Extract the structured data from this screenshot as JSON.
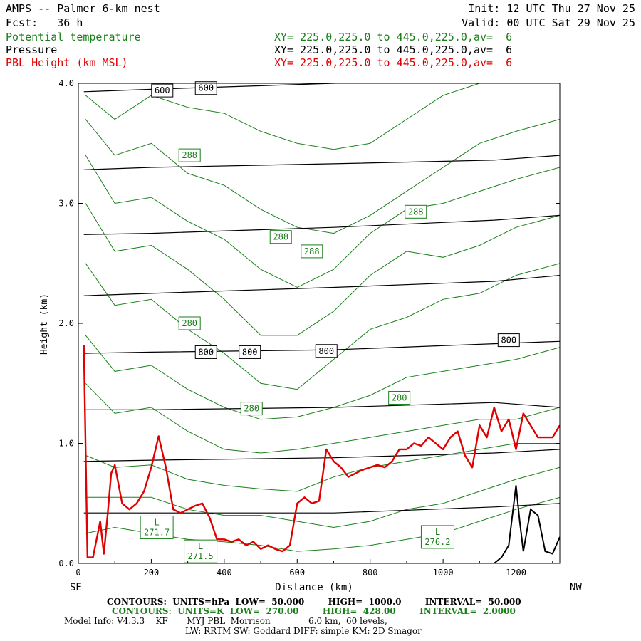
{
  "header": {
    "title": "AMPS -- Palmer 6-km nest",
    "fcst": "Fcst:   36 h",
    "init": "Init: 12 UTC Thu 27 Nov 25",
    "valid": "Valid: 00 UTC Sat 29 Nov 25",
    "fields": [
      {
        "name": "Potential temperature",
        "xy": "XY= 225.0,225.0 to 445.0,225.0,av=  6",
        "color": "#1a7f1a"
      },
      {
        "name": "Pressure",
        "xy": "XY= 225.0,225.0 to 445.0,225.0,av=  6",
        "color": "#000000"
      },
      {
        "name": "PBL Height (km MSL)",
        "xy": "XY= 225.0,225.0 to 445.0,225.0,av=  6",
        "color": "#e00000"
      }
    ]
  },
  "chart_data": {
    "type": "line",
    "xlabel": "Distance (km)",
    "ylabel": "Height (km)",
    "xlim": [
      0,
      1320
    ],
    "ylim": [
      0.0,
      4.0
    ],
    "x_ticks": [
      "0",
      "200",
      "400",
      "600",
      "800",
      "1000",
      "1200"
    ],
    "y_ticks": [
      "0.0",
      "1.0",
      "2.0",
      "3.0",
      "4.0"
    ],
    "left_end_label": "SE",
    "right_end_label": "NW",
    "pressure_contours": [
      {
        "x": [
          15,
          200,
          700,
          1140,
          1320
        ],
        "y": [
          3.93,
          3.95,
          4.0,
          4.05,
          4.1
        ]
      },
      {
        "x": [
          15,
          200,
          700,
          1140,
          1320
        ],
        "y": [
          3.28,
          3.3,
          3.33,
          3.36,
          3.4
        ]
      },
      {
        "x": [
          15,
          200,
          700,
          1140,
          1320
        ],
        "y": [
          2.74,
          2.75,
          2.8,
          2.86,
          2.9
        ]
      },
      {
        "x": [
          15,
          200,
          700,
          1140,
          1320
        ],
        "y": [
          2.23,
          2.25,
          2.3,
          2.35,
          2.4
        ]
      },
      {
        "x": [
          15,
          200,
          700,
          1140,
          1320
        ],
        "y": [
          1.75,
          1.76,
          1.78,
          1.83,
          1.85
        ]
      },
      {
        "x": [
          15,
          200,
          700,
          1140,
          1320
        ],
        "y": [
          1.28,
          1.28,
          1.3,
          1.34,
          1.3
        ]
      },
      {
        "x": [
          15,
          200,
          700,
          1140,
          1320
        ],
        "y": [
          0.85,
          0.86,
          0.88,
          0.92,
          0.95
        ]
      },
      {
        "x": [
          15,
          200,
          700,
          1140,
          1320
        ],
        "y": [
          0.42,
          0.42,
          0.42,
          0.47,
          0.5
        ]
      }
    ],
    "pressure_labels": [
      {
        "text": "600",
        "x": 230,
        "y": 3.94
      },
      {
        "text": "600",
        "x": 350,
        "y": 3.96
      },
      {
        "text": "800",
        "x": 350,
        "y": 1.76
      },
      {
        "text": "800",
        "x": 470,
        "y": 1.76
      },
      {
        "text": "800",
        "x": 680,
        "y": 1.77
      },
      {
        "text": "800",
        "x": 1180,
        "y": 1.86
      }
    ],
    "theta_contours": [
      {
        "x": [
          20,
          100,
          200,
          300,
          400,
          500,
          600,
          700,
          800,
          900,
          1000,
          1100,
          1200,
          1320
        ],
        "y": [
          3.9,
          3.7,
          3.9,
          3.8,
          3.75,
          3.6,
          3.5,
          3.45,
          3.5,
          3.7,
          3.9,
          4.0,
          4.0,
          4.0
        ]
      },
      {
        "x": [
          20,
          100,
          200,
          300,
          400,
          500,
          600,
          700,
          800,
          900,
          1000,
          1100,
          1200,
          1320
        ],
        "y": [
          3.7,
          3.4,
          3.5,
          3.25,
          3.15,
          2.95,
          2.8,
          2.75,
          2.9,
          3.1,
          3.3,
          3.5,
          3.6,
          3.7
        ]
      },
      {
        "x": [
          20,
          100,
          200,
          300,
          400,
          500,
          600,
          700,
          800,
          900,
          1000,
          1100,
          1200,
          1320
        ],
        "y": [
          3.4,
          3.0,
          3.05,
          2.85,
          2.7,
          2.45,
          2.3,
          2.45,
          2.75,
          2.95,
          3.0,
          3.1,
          3.2,
          3.3
        ]
      },
      {
        "x": [
          20,
          100,
          200,
          300,
          400,
          500,
          600,
          700,
          800,
          900,
          1000,
          1100,
          1200,
          1320
        ],
        "y": [
          3.0,
          2.6,
          2.65,
          2.45,
          2.2,
          1.9,
          1.9,
          2.1,
          2.4,
          2.6,
          2.55,
          2.65,
          2.8,
          2.9
        ]
      },
      {
        "x": [
          20,
          100,
          200,
          300,
          400,
          500,
          600,
          700,
          800,
          900,
          1000,
          1100,
          1200,
          1320
        ],
        "y": [
          2.5,
          2.15,
          2.2,
          1.95,
          1.75,
          1.5,
          1.45,
          1.7,
          1.95,
          2.05,
          2.2,
          2.25,
          2.4,
          2.5
        ]
      },
      {
        "x": [
          20,
          100,
          200,
          300,
          400,
          500,
          600,
          700,
          800,
          900,
          1000,
          1100,
          1200,
          1320
        ],
        "y": [
          1.9,
          1.6,
          1.65,
          1.45,
          1.3,
          1.2,
          1.22,
          1.3,
          1.4,
          1.55,
          1.6,
          1.65,
          1.7,
          1.8
        ]
      },
      {
        "x": [
          20,
          100,
          200,
          300,
          400,
          500,
          600,
          700,
          800,
          900,
          1000,
          1100,
          1200,
          1320
        ],
        "y": [
          1.5,
          1.25,
          1.3,
          1.1,
          0.95,
          0.92,
          0.95,
          1.0,
          1.05,
          1.1,
          1.15,
          1.2,
          1.2,
          1.3
        ]
      },
      {
        "x": [
          20,
          100,
          200,
          300,
          400,
          500,
          600,
          700,
          800,
          900,
          1000,
          1100,
          1200,
          1320
        ],
        "y": [
          0.9,
          0.8,
          0.82,
          0.7,
          0.65,
          0.62,
          0.6,
          0.72,
          0.8,
          0.85,
          0.9,
          0.95,
          1.0,
          1.0
        ]
      },
      {
        "x": [
          20,
          100,
          200,
          300,
          400,
          500,
          600,
          700,
          800,
          900,
          1000,
          1100,
          1200,
          1320
        ],
        "y": [
          0.55,
          0.55,
          0.55,
          0.45,
          0.4,
          0.4,
          0.35,
          0.3,
          0.35,
          0.45,
          0.5,
          0.6,
          0.7,
          0.8
        ]
      },
      {
        "x": [
          20,
          100,
          200,
          300,
          400,
          500,
          600,
          700,
          800,
          900,
          1000,
          1100,
          1200,
          1320
        ],
        "y": [
          0.25,
          0.3,
          0.25,
          0.2,
          0.18,
          0.15,
          0.1,
          0.12,
          0.15,
          0.2,
          0.25,
          0.35,
          0.45,
          0.55
        ]
      }
    ],
    "theta_labels": [
      {
        "text": "288",
        "x": 305,
        "y": 3.4
      },
      {
        "text": "288",
        "x": 555,
        "y": 2.72
      },
      {
        "text": "288",
        "x": 640,
        "y": 2.6
      },
      {
        "text": "288",
        "x": 925,
        "y": 2.93
      },
      {
        "text": "280",
        "x": 305,
        "y": 2.0
      },
      {
        "text": "280",
        "x": 475,
        "y": 1.29
      },
      {
        "text": "280",
        "x": 880,
        "y": 1.38
      }
    ],
    "low_labels": [
      {
        "text": "L\n271.7",
        "x": 215,
        "y": 0.3
      },
      {
        "text": "L\n271.5",
        "x": 335,
        "y": 0.1
      },
      {
        "text": "L\n276.2",
        "x": 985,
        "y": 0.22
      }
    ],
    "pbl_height": {
      "x": [
        15,
        25,
        40,
        60,
        70,
        80,
        90,
        100,
        120,
        140,
        160,
        180,
        200,
        220,
        240,
        260,
        280,
        300,
        320,
        340,
        360,
        380,
        400,
        420,
        440,
        460,
        480,
        500,
        520,
        540,
        560,
        580,
        600,
        620,
        640,
        660,
        680,
        700,
        720,
        740,
        760,
        780,
        800,
        820,
        840,
        860,
        880,
        900,
        920,
        940,
        960,
        980,
        1000,
        1020,
        1040,
        1060,
        1080,
        1100,
        1120,
        1140,
        1160,
        1180,
        1200,
        1220,
        1240,
        1260,
        1280,
        1300,
        1320
      ],
      "y": [
        1.82,
        0.05,
        0.05,
        0.35,
        0.08,
        0.4,
        0.75,
        0.82,
        0.5,
        0.45,
        0.5,
        0.6,
        0.8,
        1.06,
        0.8,
        0.45,
        0.42,
        0.45,
        0.48,
        0.5,
        0.38,
        0.2,
        0.2,
        0.18,
        0.2,
        0.15,
        0.18,
        0.12,
        0.15,
        0.12,
        0.1,
        0.15,
        0.5,
        0.55,
        0.5,
        0.52,
        0.95,
        0.85,
        0.8,
        0.72,
        0.75,
        0.78,
        0.8,
        0.82,
        0.8,
        0.85,
        0.95,
        0.95,
        1.0,
        0.98,
        1.05,
        1.0,
        0.95,
        1.05,
        1.1,
        0.9,
        0.8,
        1.15,
        1.05,
        1.3,
        1.1,
        1.2,
        0.95,
        1.25,
        1.15,
        1.05,
        1.05,
        1.05,
        1.15
      ]
    },
    "terrain": {
      "x": [
        1120,
        1140,
        1160,
        1180,
        1200,
        1210,
        1220,
        1240,
        1260,
        1280,
        1300,
        1320
      ],
      "y": [
        0.0,
        0.0,
        0.05,
        0.15,
        0.65,
        0.35,
        0.1,
        0.45,
        0.4,
        0.1,
        0.08,
        0.22
      ]
    }
  },
  "footer": {
    "black_contours": "CONTOURS:  UNITS=hPa  LOW=  50.000        HIGH=  1000.0        INTERVAL=  50.000",
    "green_contours": "CONTOURS:  UNITS=K  LOW=  270.00        HIGH=  428.00        INTERVAL=  2.0000",
    "model_info": "Model Info: V4.3.3    KF       MYJ PBL  Morrison              6.0 km,  60 levels,",
    "model_info2": "LW: RRTM SW: Goddard DIFF: simple KM: 2D Smagor"
  }
}
